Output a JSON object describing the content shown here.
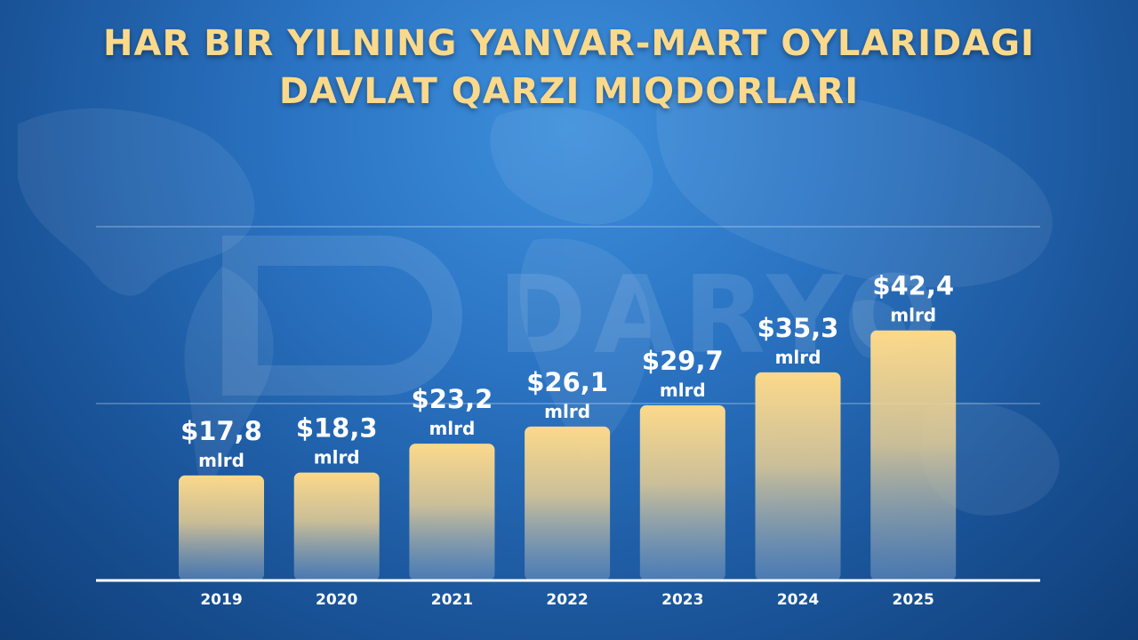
{
  "title_lines": [
    "HAR BIR YILNING YANVAR-MART OYLARIDAGI",
    "DAVLAT QARZI MIQDORLARI"
  ],
  "watermark": "DARYO",
  "colors": {
    "title": "#fbd98a",
    "bar_top": "#fcd98a",
    "bar_bottom": "#6f97c6",
    "background": "#2a73c2"
  },
  "chart_data": {
    "type": "bar",
    "categories": [
      "2019",
      "2020",
      "2021",
      "2022",
      "2023",
      "2024",
      "2025"
    ],
    "values": [
      17.8,
      18.3,
      23.2,
      26.1,
      29.7,
      35.3,
      42.4
    ],
    "labels": [
      "$17,8",
      "$18,3",
      "$23,2",
      "$26,1",
      "$29,7",
      "$35,3",
      "$42,4"
    ],
    "unit": "mlrd",
    "title": "HAR BIR YILNING YANVAR-MART OYLARIDAGI DAVLAT QARZI MIQDORLARI",
    "xlabel": "",
    "ylabel": "",
    "ylim": [
      0,
      60
    ],
    "grid": true
  }
}
